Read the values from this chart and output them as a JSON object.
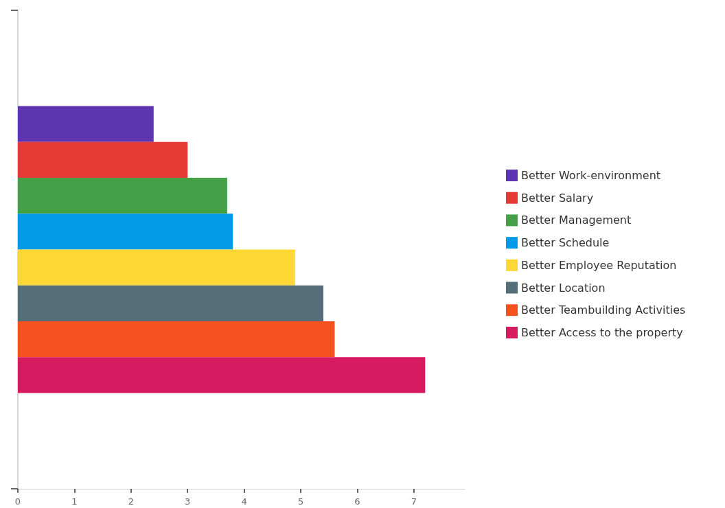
{
  "chart_data": {
    "type": "bar",
    "orientation": "horizontal",
    "categories": [
      null
    ],
    "series": [
      {
        "name": "Better Work-environment",
        "color": "#5e35b1",
        "values": [
          2.4
        ]
      },
      {
        "name": "Better Salary",
        "color": "#e53935",
        "values": [
          3.0
        ]
      },
      {
        "name": "Better Management",
        "color": "#43a047",
        "values": [
          3.7
        ]
      },
      {
        "name": "Better Schedule",
        "color": "#039be5",
        "values": [
          3.8
        ]
      },
      {
        "name": "Better Employee Reputation",
        "color": "#fdd835",
        "values": [
          4.9
        ]
      },
      {
        "name": "Better Location",
        "color": "#546e7a",
        "values": [
          5.4
        ]
      },
      {
        "name": "Better Teambuilding Activities",
        "color": "#f4511e",
        "values": [
          5.6
        ]
      },
      {
        "name": "Better Access to the property",
        "color": "#d81b60",
        "values": [
          7.2
        ]
      }
    ],
    "xlim": [
      0,
      7.9
    ],
    "xticks": [
      0,
      1,
      2,
      3,
      4,
      5,
      6,
      7
    ],
    "tick_labels": "x",
    "grid": false,
    "legend": "right"
  }
}
